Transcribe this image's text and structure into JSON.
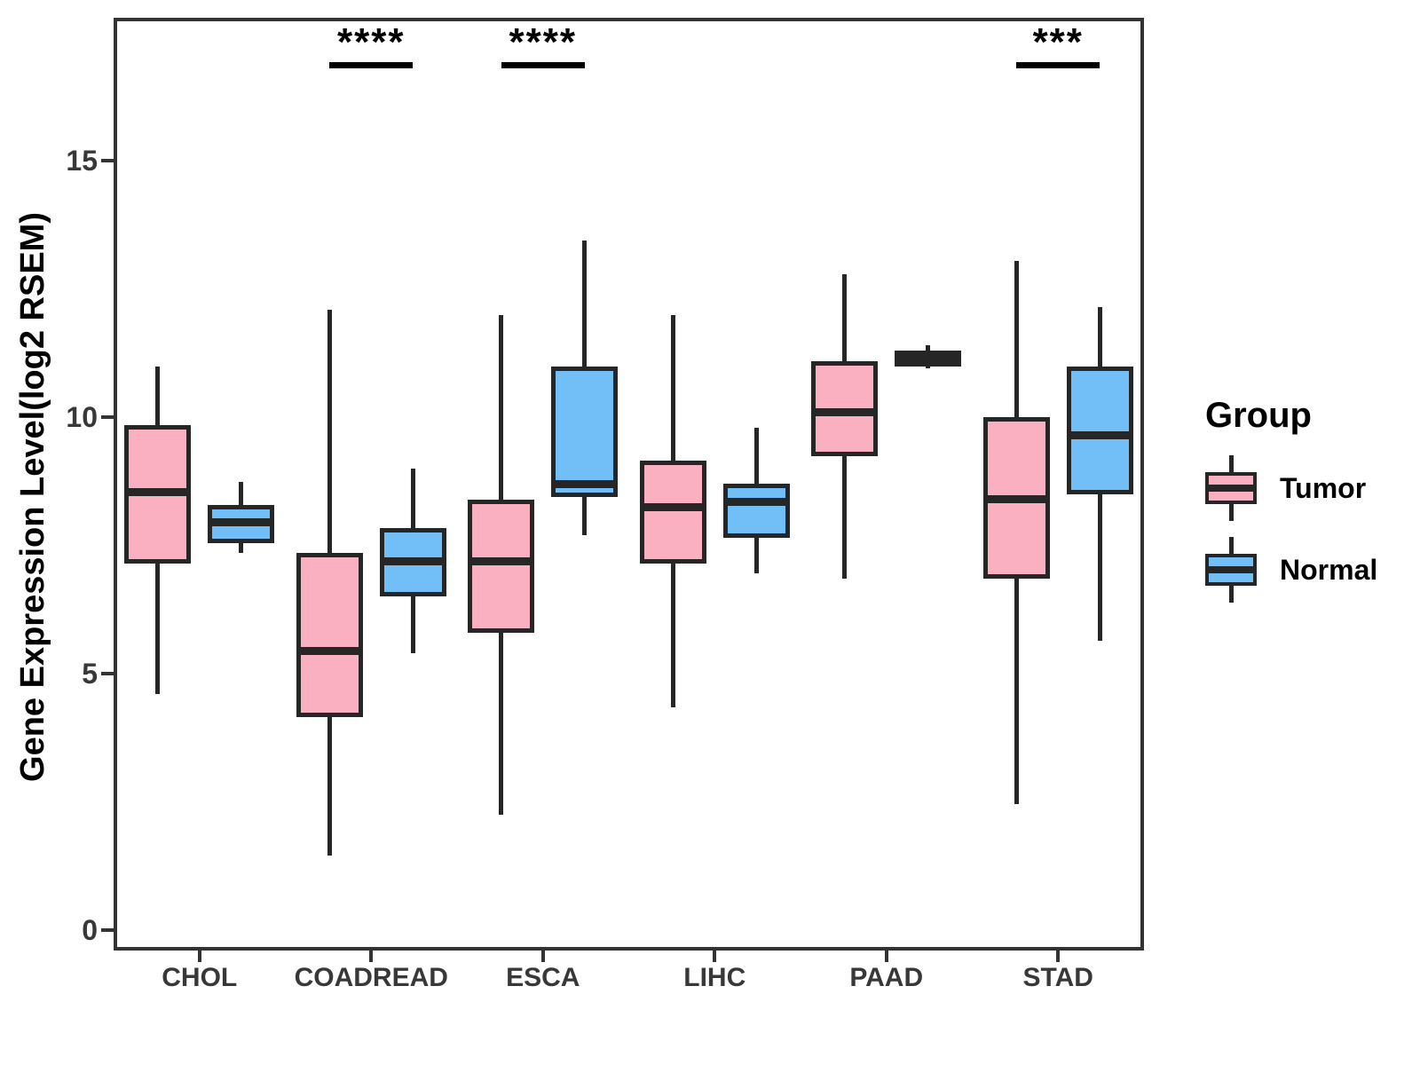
{
  "chart_data": {
    "type": "boxplot",
    "title": "",
    "xlabel": "",
    "ylabel": "Gene Expression Level(log2 RSEM)",
    "ylim": [
      0,
      17.8
    ],
    "y_ticks": [
      0,
      5,
      10,
      15
    ],
    "categories": [
      "CHOL",
      "COADREAD",
      "ESCA",
      "LIHC",
      "PAAD",
      "STAD"
    ],
    "series": [
      {
        "name": "Tumor",
        "fill": "#FAB0C0",
        "summaries": [
          [
            4.6,
            7.15,
            8.55,
            9.85,
            11.0
          ],
          [
            1.45,
            4.15,
            5.45,
            7.35,
            12.1
          ],
          [
            2.25,
            5.8,
            7.2,
            8.4,
            12.0
          ],
          [
            4.35,
            7.15,
            8.25,
            9.15,
            12.0
          ],
          [
            6.85,
            9.25,
            10.1,
            11.1,
            12.8
          ],
          [
            2.45,
            6.85,
            8.4,
            10.0,
            13.05
          ]
        ]
      },
      {
        "name": "Normal",
        "fill": "#71BFF6",
        "summaries": [
          [
            7.35,
            7.55,
            7.95,
            8.3,
            8.75
          ],
          [
            5.4,
            6.5,
            7.2,
            7.85,
            9.0
          ],
          [
            7.7,
            8.45,
            8.7,
            11.0,
            13.45
          ],
          [
            6.95,
            7.65,
            8.35,
            8.7,
            9.8
          ],
          [
            10.95,
            11.0,
            11.15,
            11.3,
            11.4
          ],
          [
            5.65,
            8.5,
            9.65,
            11.0,
            12.15
          ]
        ]
      }
    ],
    "annotations": [
      {
        "category": "COADREAD",
        "label": "****"
      },
      {
        "category": "ESCA",
        "label": "****"
      },
      {
        "category": "STAD",
        "label": "***"
      }
    ],
    "legend_title": "Group",
    "summary_order": [
      "whisker_low",
      "q1",
      "median",
      "q3",
      "whisker_high"
    ],
    "colors": {
      "box_stroke": "#262626",
      "panel_border": "#333333",
      "axis_text": "#383838",
      "annotation_text": "#000000"
    }
  }
}
